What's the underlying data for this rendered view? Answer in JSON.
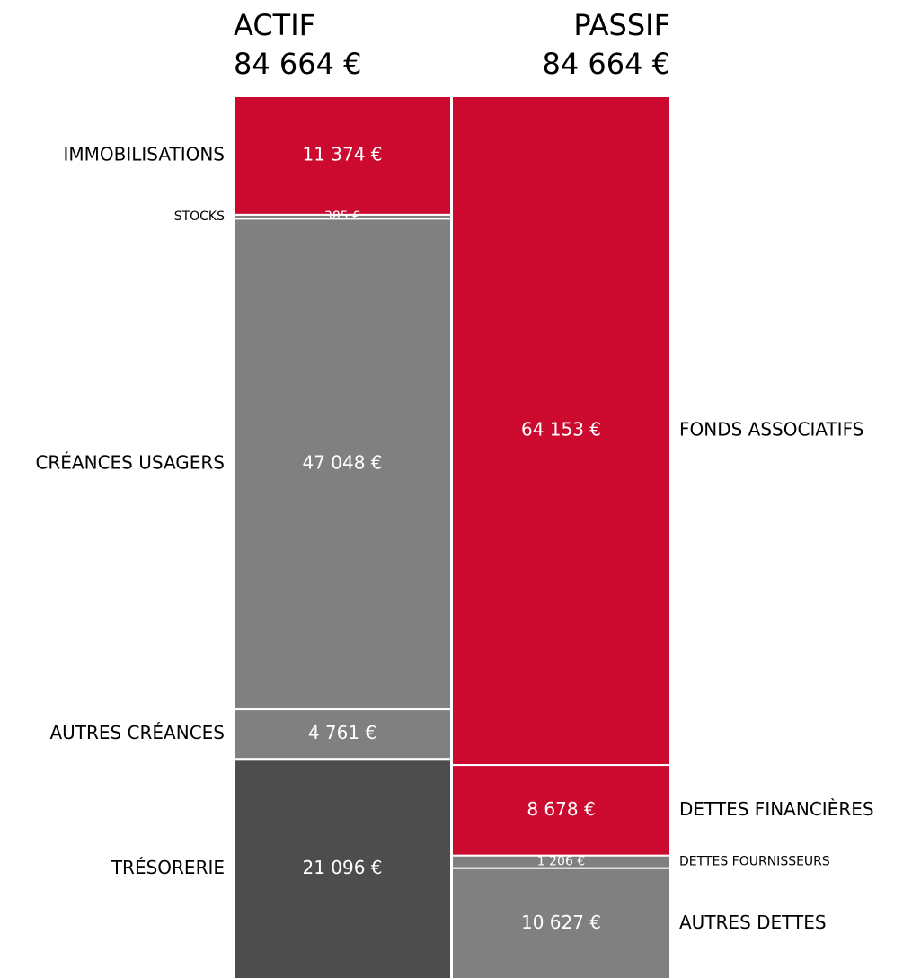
{
  "chart_data": {
    "type": "stacked-bar",
    "columns": [
      {
        "name": "ACTIF",
        "total": 84664,
        "total_label": "84 664 €",
        "categories": [
          "IMMOBILISATIONS",
          "STOCKS",
          "CRÉANCES USAGERS",
          "AUTRES CRÉANCES",
          "TRÉSORERIE"
        ],
        "values": [
          11374,
          385,
          47048,
          4761,
          21096
        ],
        "value_labels": [
          "11 374 €",
          "385 €",
          "47 048 €",
          "4 761 €",
          "21 096 €"
        ],
        "colors": [
          "#cc0a2f",
          "#808080",
          "#808080",
          "#808080",
          "#4d4d4d"
        ]
      },
      {
        "name": "PASSIF",
        "total": 84664,
        "total_label": "84 664 €",
        "categories": [
          "FONDS ASSOCIATIFS",
          "DETTES FINANCIÈRES",
          "DETTES FOURNISSEURS",
          "AUTRES DETTES"
        ],
        "values": [
          64153,
          8678,
          1206,
          10627
        ],
        "value_labels": [
          "64 153 €",
          "8 678 €",
          "1 206 €",
          "10 627 €"
        ],
        "colors": [
          "#cc0a2f",
          "#cc0a2f",
          "#808080",
          "#808080"
        ]
      }
    ]
  }
}
